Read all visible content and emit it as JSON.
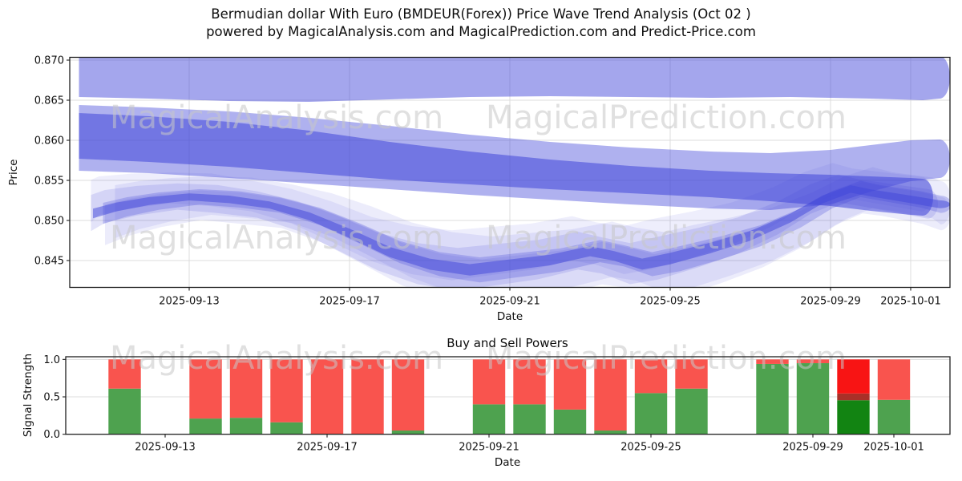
{
  "title": {
    "line1": "Bermudian dollar With Euro (BMDEUR(Forex)) Price Wave Trend Analysis (Oct 02 )",
    "line2": "powered by MagicalAnalysis.com and MagicalPrediction.com and Predict-Price.com"
  },
  "watermarks": {
    "left": "MagicalAnalysis.com",
    "right": "MagicalPrediction.com"
  },
  "colors": {
    "band_base": "#4046d9",
    "bar_green": "#4ea24f",
    "bar_red": "#f9544e",
    "hl_green": "#128412",
    "hl_red": "#f81414",
    "hl_overlap": "#a93028",
    "grid": "#dcdcdc",
    "spine": "#1f1f1f",
    "text": "#111111"
  },
  "chart_data": [
    {
      "type": "area",
      "name": "price_wave_trend",
      "ylabel": "Price",
      "xlabel": "Date",
      "x_unit": "days since 2025-09-10",
      "ylim": [
        0.8417,
        0.8703
      ],
      "grid": "both",
      "yticks": [
        {
          "v": 0.845,
          "label": "0.845"
        },
        {
          "v": 0.85,
          "label": "0.850"
        },
        {
          "v": 0.855,
          "label": "0.855"
        },
        {
          "v": 0.86,
          "label": "0.860"
        },
        {
          "v": 0.865,
          "label": "0.865"
        },
        {
          "v": 0.87,
          "label": "0.870"
        }
      ],
      "xticks": [
        {
          "d": 3,
          "label": "2025-09-13"
        },
        {
          "d": 7,
          "label": "2025-09-17"
        },
        {
          "d": 11,
          "label": "2025-09-21"
        },
        {
          "d": 15,
          "label": "2025-09-25"
        },
        {
          "d": 19,
          "label": "2025-09-29"
        },
        {
          "d": 21,
          "label": "2025-10-01"
        }
      ],
      "bands": [
        {
          "name": "upper-band",
          "alpha": 0.48,
          "x": [
            0.25,
            2,
            4,
            6,
            8,
            10,
            12,
            14,
            16,
            18,
            20,
            21.3,
            21.72
          ],
          "top": [
            0.8705,
            0.8705,
            0.8705,
            0.8705,
            0.8705,
            0.8705,
            0.8705,
            0.8705,
            0.8705,
            0.8705,
            0.8705,
            0.8705,
            0.8705
          ],
          "bottom": [
            0.8654,
            0.8652,
            0.8649,
            0.8648,
            0.8651,
            0.8654,
            0.8655,
            0.8654,
            0.8653,
            0.8654,
            0.8652,
            0.865,
            0.8652
          ]
        },
        {
          "name": "mid-band-outer",
          "alpha": 0.42,
          "x": [
            0.25,
            2,
            4,
            6,
            8,
            10,
            12,
            14,
            16,
            17.5,
            19,
            20,
            21,
            21.72
          ],
          "top": [
            0.8644,
            0.8641,
            0.8636,
            0.8628,
            0.8618,
            0.8607,
            0.8598,
            0.8591,
            0.8586,
            0.8584,
            0.8588,
            0.8594,
            0.86,
            0.8601
          ],
          "bottom": [
            0.8562,
            0.8559,
            0.8553,
            0.8546,
            0.8539,
            0.8532,
            0.8526,
            0.852,
            0.8515,
            0.8513,
            0.852,
            0.8536,
            0.8549,
            0.8553
          ]
        },
        {
          "name": "mid-band-core",
          "alpha": 0.55,
          "x": [
            0.25,
            2,
            4,
            6,
            8,
            10,
            12,
            14,
            16,
            17.5,
            19,
            20,
            21,
            21.3
          ],
          "top": [
            0.8634,
            0.863,
            0.8623,
            0.8612,
            0.8598,
            0.8586,
            0.8576,
            0.8568,
            0.8562,
            0.8559,
            0.8557,
            0.8555,
            0.8553,
            0.8552
          ],
          "bottom": [
            0.8577,
            0.8573,
            0.8567,
            0.8559,
            0.8551,
            0.8545,
            0.8539,
            0.8534,
            0.8529,
            0.8524,
            0.8518,
            0.8512,
            0.8507,
            0.8506
          ]
        }
      ],
      "wave_cluster": {
        "x": [
          0.6,
          1.2,
          2,
          3,
          4,
          5,
          6,
          7,
          8,
          9,
          10,
          11,
          12,
          13,
          13.6,
          14.3,
          15,
          16,
          17,
          18,
          18.8,
          19.5,
          20,
          21,
          21.72
        ],
        "center": [
          0.8511,
          0.8519,
          0.8526,
          0.8531,
          0.8528,
          0.8521,
          0.8507,
          0.8486,
          0.8463,
          0.8448,
          0.8441,
          0.8447,
          0.8453,
          0.8464,
          0.8458,
          0.8448,
          0.8455,
          0.8468,
          0.8483,
          0.8505,
          0.8528,
          0.8541,
          0.8536,
          0.8528,
          0.8522
        ],
        "width": [
          1.1,
          1.0,
          0.9,
          0.8,
          0.85,
          0.8,
          0.9,
          1.05,
          1.15,
          1.25,
          1.3,
          1.25,
          1.2,
          1.15,
          1.1,
          1.25,
          1.3,
          1.2,
          1.1,
          1.0,
          0.9,
          0.85,
          0.8,
          0.85,
          0.9
        ],
        "ribbons": [
          {
            "up": 0.00035,
            "down": 0.00075,
            "alpha": 0.5,
            "dx": 0
          },
          {
            "up": 0.001,
            "down": 0.0014,
            "alpha": 0.26,
            "dx": 0.25
          },
          {
            "up": 0.0019,
            "down": 0.0022,
            "alpha": 0.15,
            "dx": -0.3
          },
          {
            "up": 0.003,
            "down": 0.003,
            "alpha": 0.1,
            "dx": 0.55
          },
          {
            "up": 0.0036,
            "down": 0.0012,
            "alpha": 0.09,
            "dx": -0.45
          },
          {
            "up": 0.0008,
            "down": 0.0038,
            "alpha": 0.1,
            "dx": 0.3
          }
        ]
      }
    },
    {
      "type": "bar",
      "name": "buy_sell_powers",
      "title": "Buy and Sell Powers",
      "ylabel": "Signal Strength",
      "xlabel": "Date",
      "ylim": [
        0,
        1.04
      ],
      "grid": "horizontal",
      "yticks": [
        {
          "v": 0.0,
          "label": "0.0"
        },
        {
          "v": 0.5,
          "label": "0.5"
        },
        {
          "v": 1.0,
          "label": "1.0"
        }
      ],
      "xticks": [
        {
          "d": 3,
          "label": "2025-09-13"
        },
        {
          "d": 7,
          "label": "2025-09-17"
        },
        {
          "d": 11,
          "label": "2025-09-21"
        },
        {
          "d": 15,
          "label": "2025-09-25"
        },
        {
          "d": 19,
          "label": "2025-09-29"
        },
        {
          "d": 21,
          "label": "2025-10-01"
        }
      ],
      "bar_width_days": 0.8,
      "bars": [
        {
          "date": "2025-09-12",
          "d": 2,
          "buy": 0.61,
          "sell": 0.39
        },
        {
          "date": "2025-09-14",
          "d": 4,
          "buy": 0.21,
          "sell": 0.79
        },
        {
          "date": "2025-09-15",
          "d": 5,
          "buy": 0.22,
          "sell": 0.78
        },
        {
          "date": "2025-09-16",
          "d": 6,
          "buy": 0.16,
          "sell": 0.84
        },
        {
          "date": "2025-09-17",
          "d": 7,
          "buy": 0.0,
          "sell": 1.0
        },
        {
          "date": "2025-09-18",
          "d": 8,
          "buy": 0.0,
          "sell": 1.0
        },
        {
          "date": "2025-09-19",
          "d": 9,
          "buy": 0.05,
          "sell": 0.95
        },
        {
          "date": "2025-09-21",
          "d": 11,
          "buy": 0.4,
          "sell": 0.6
        },
        {
          "date": "2025-09-22",
          "d": 12,
          "buy": 0.4,
          "sell": 0.6
        },
        {
          "date": "2025-09-23",
          "d": 13,
          "buy": 0.33,
          "sell": 0.67
        },
        {
          "date": "2025-09-24",
          "d": 14,
          "buy": 0.05,
          "sell": 0.95
        },
        {
          "date": "2025-09-25",
          "d": 15,
          "buy": 0.55,
          "sell": 0.45
        },
        {
          "date": "2025-09-26",
          "d": 16,
          "buy": 0.61,
          "sell": 0.39
        },
        {
          "date": "2025-09-28",
          "d": 18,
          "buy": 0.94,
          "sell": 0.06
        },
        {
          "date": "2025-09-29",
          "d": 19,
          "buy": 0.95,
          "sell": 0.05
        },
        {
          "date": "2025-09-30",
          "d": 20,
          "buy": 0.46,
          "sell": 0.54,
          "highlight": true,
          "overlap_from": 0.455,
          "overlap_to": 0.545
        },
        {
          "date": "2025-10-01",
          "d": 21,
          "buy": 0.46,
          "sell": 0.54
        }
      ]
    }
  ]
}
